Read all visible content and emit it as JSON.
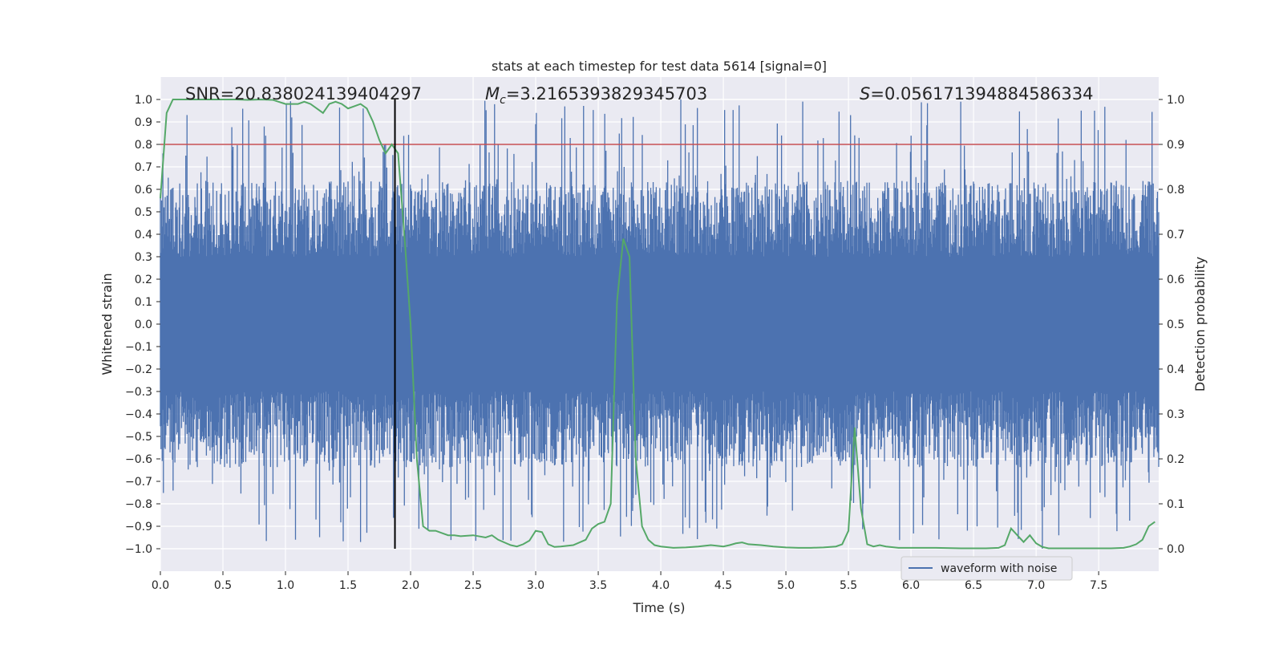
{
  "chart_data": {
    "type": "line",
    "title": "stats at each timestep for test data 5614 [signal=0]",
    "xlabel": "Time (s)",
    "ylabel_left": "Whitened strain",
    "ylabel_right": "Detection probability",
    "xlim": [
      0.0,
      7.98
    ],
    "ylim_left": [
      -1.1,
      1.1
    ],
    "ylim_right": [
      -0.05,
      1.05
    ],
    "xticks": [
      0.0,
      0.5,
      1.0,
      1.5,
      2.0,
      2.5,
      3.0,
      3.5,
      4.0,
      4.5,
      5.0,
      5.5,
      6.0,
      6.5,
      7.0,
      7.5
    ],
    "xtick_labels": [
      "0.0",
      "0.5",
      "1.0",
      "1.5",
      "2.0",
      "2.5",
      "3.0",
      "3.5",
      "4.0",
      "4.5",
      "5.0",
      "5.5",
      "6.0",
      "6.5",
      "7.0",
      "7.5"
    ],
    "yticks_left": [
      -1.0,
      -0.9,
      -0.8,
      -0.7,
      -0.6,
      -0.5,
      -0.4,
      -0.3,
      -0.2,
      -0.1,
      0.0,
      0.1,
      0.2,
      0.3,
      0.4,
      0.5,
      0.6,
      0.7,
      0.8,
      0.9,
      1.0
    ],
    "ytick_labels_left": [
      "−1.0",
      "−0.9",
      "−0.8",
      "−0.7",
      "−0.6",
      "−0.5",
      "−0.4",
      "−0.3",
      "−0.2",
      "−0.1",
      "0.0",
      "0.1",
      "0.2",
      "0.3",
      "0.4",
      "0.5",
      "0.6",
      "0.7",
      "0.8",
      "0.9",
      "1.0"
    ],
    "yticks_right": [
      0.0,
      0.1,
      0.2,
      0.3,
      0.4,
      0.5,
      0.6,
      0.7,
      0.8,
      0.9,
      1.0
    ],
    "ytick_labels_right": [
      "0.0",
      "0.1",
      "0.2",
      "0.3",
      "0.4",
      "0.5",
      "0.6",
      "0.7",
      "0.8",
      "0.9",
      "1.0"
    ],
    "grid": true,
    "legend": {
      "placement": "lower-center-right",
      "entries": [
        {
          "label": "waveform with noise",
          "color": "#4c72b0"
        }
      ]
    },
    "annotations": {
      "snr": "SNR=20.838024139404297",
      "mc_symbol": "M",
      "mc_sub": "c",
      "mc_value": "=3.2165393829345703",
      "s_symbol": "S",
      "s_value": "=0.05617139488458633‌4"
    },
    "threshold": {
      "axis": "right",
      "value": 0.9,
      "color": "#c44e52"
    },
    "vertical_marker": {
      "x": 1.875,
      "color": "#000000"
    },
    "waveform": {
      "name": "waveform with noise",
      "color": "#4c72b0",
      "envelope_peaks": [
        {
          "x": 0.02,
          "y": 0.76
        },
        {
          "x": 0.83,
          "y": 0.88
        },
        {
          "x": 1.08,
          "y": -0.96
        },
        {
          "x": 1.6,
          "y": -0.97
        },
        {
          "x": 1.8,
          "y": 0.8
        },
        {
          "x": 3.0,
          "y": 0.89
        },
        {
          "x": 2.7,
          "y": 0.8
        },
        {
          "x": 3.8,
          "y": -0.76
        },
        {
          "x": 4.16,
          "y": 1.0
        },
        {
          "x": 5.55,
          "y": 0.84
        },
        {
          "x": 7.05,
          "y": -1.0
        },
        {
          "x": 7.55,
          "y": -0.77
        }
      ],
      "typical_amplitude": 0.45
    },
    "series": [
      {
        "name": "",
        "axis": "right",
        "color": "#55a868",
        "x": [
          0.0,
          0.05,
          0.1,
          0.2,
          0.3,
          0.4,
          0.5,
          0.6,
          0.7,
          0.8,
          0.9,
          1.0,
          1.1,
          1.15,
          1.2,
          1.25,
          1.3,
          1.35,
          1.4,
          1.45,
          1.5,
          1.55,
          1.6,
          1.65,
          1.7,
          1.75,
          1.8,
          1.85,
          1.9,
          1.95,
          2.0,
          2.05,
          2.1,
          2.15,
          2.2,
          2.25,
          2.3,
          2.35,
          2.4,
          2.5,
          2.6,
          2.65,
          2.7,
          2.8,
          2.85,
          2.9,
          2.95,
          3.0,
          3.05,
          3.1,
          3.15,
          3.2,
          3.3,
          3.4,
          3.45,
          3.5,
          3.55,
          3.6,
          3.65,
          3.7,
          3.75,
          3.8,
          3.85,
          3.9,
          3.95,
          4.0,
          4.1,
          4.2,
          4.3,
          4.4,
          4.5,
          4.55,
          4.6,
          4.65,
          4.7,
          4.8,
          4.9,
          5.0,
          5.1,
          5.2,
          5.3,
          5.4,
          5.45,
          5.5,
          5.55,
          5.6,
          5.65,
          5.7,
          5.75,
          5.8,
          5.9,
          6.0,
          6.2,
          6.4,
          6.6,
          6.7,
          6.75,
          6.8,
          6.85,
          6.9,
          6.95,
          7.0,
          7.05,
          7.1,
          7.2,
          7.3,
          7.4,
          7.5,
          7.6,
          7.7,
          7.75,
          7.8,
          7.85,
          7.9,
          7.95
        ],
        "y": [
          0.78,
          0.97,
          1.0,
          1.0,
          1.0,
          1.0,
          1.0,
          1.0,
          0.999,
          1.0,
          0.999,
          0.99,
          0.99,
          0.995,
          0.99,
          0.98,
          0.97,
          0.99,
          0.995,
          0.99,
          0.98,
          0.985,
          0.99,
          0.98,
          0.95,
          0.91,
          0.88,
          0.9,
          0.88,
          0.7,
          0.5,
          0.2,
          0.05,
          0.04,
          0.04,
          0.035,
          0.03,
          0.03,
          0.028,
          0.03,
          0.025,
          0.03,
          0.02,
          0.008,
          0.005,
          0.01,
          0.018,
          0.04,
          0.037,
          0.01,
          0.004,
          0.005,
          0.008,
          0.02,
          0.045,
          0.055,
          0.06,
          0.1,
          0.55,
          0.69,
          0.65,
          0.2,
          0.05,
          0.02,
          0.008,
          0.005,
          0.002,
          0.003,
          0.005,
          0.008,
          0.005,
          0.008,
          0.012,
          0.014,
          0.01,
          0.008,
          0.005,
          0.003,
          0.002,
          0.002,
          0.003,
          0.005,
          0.01,
          0.04,
          0.27,
          0.09,
          0.01,
          0.005,
          0.008,
          0.005,
          0.002,
          0.002,
          0.002,
          0.001,
          0.001,
          0.002,
          0.008,
          0.045,
          0.03,
          0.015,
          0.03,
          0.012,
          0.004,
          0.001,
          0.001,
          0.001,
          0.001,
          0.001,
          0.001,
          0.002,
          0.005,
          0.01,
          0.02,
          0.05,
          0.06
        ]
      }
    ]
  }
}
